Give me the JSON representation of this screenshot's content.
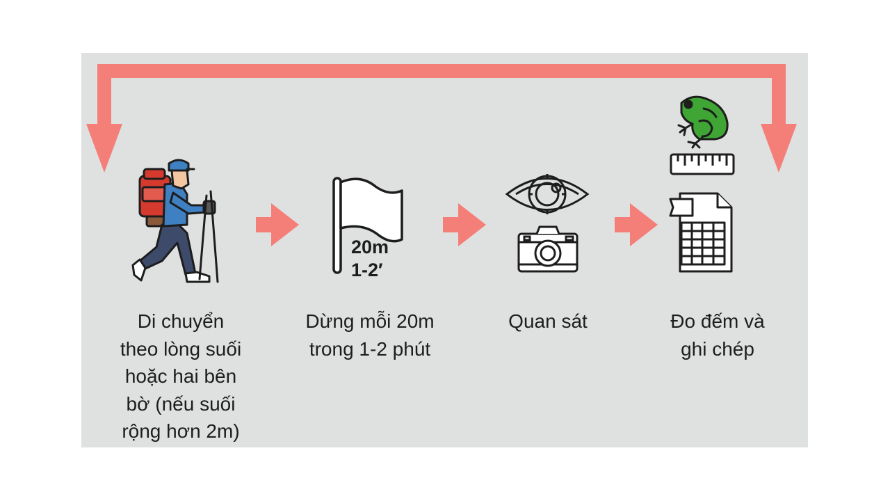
{
  "colors": {
    "panel": "#dfe1e0",
    "arrow": "#f47f79",
    "outline": "#1d1d1d",
    "frog": "#3fa535",
    "hiker_pack": "#d63a2f",
    "hiker_shirt": "#3f80c2",
    "hiker_pants": "#3d4a6a"
  },
  "icons": [
    "hiker-icon",
    "flag-icon",
    "eye-icon",
    "camera-icon",
    "frog-icon",
    "ruler-icon",
    "datasheet-icon"
  ],
  "steps": [
    {
      "label": "Di chuyển\ntheo lòng suối\nhoặc hai bên\nbờ (nếu suối\nrộng hơn 2m)"
    },
    {
      "label": "Dừng mỗi 20m\ntrong 1-2 phút",
      "flag_text": "20m\n1-2′"
    },
    {
      "label": "Quan sát"
    },
    {
      "label": "Đo đếm và\nghi chép"
    }
  ]
}
